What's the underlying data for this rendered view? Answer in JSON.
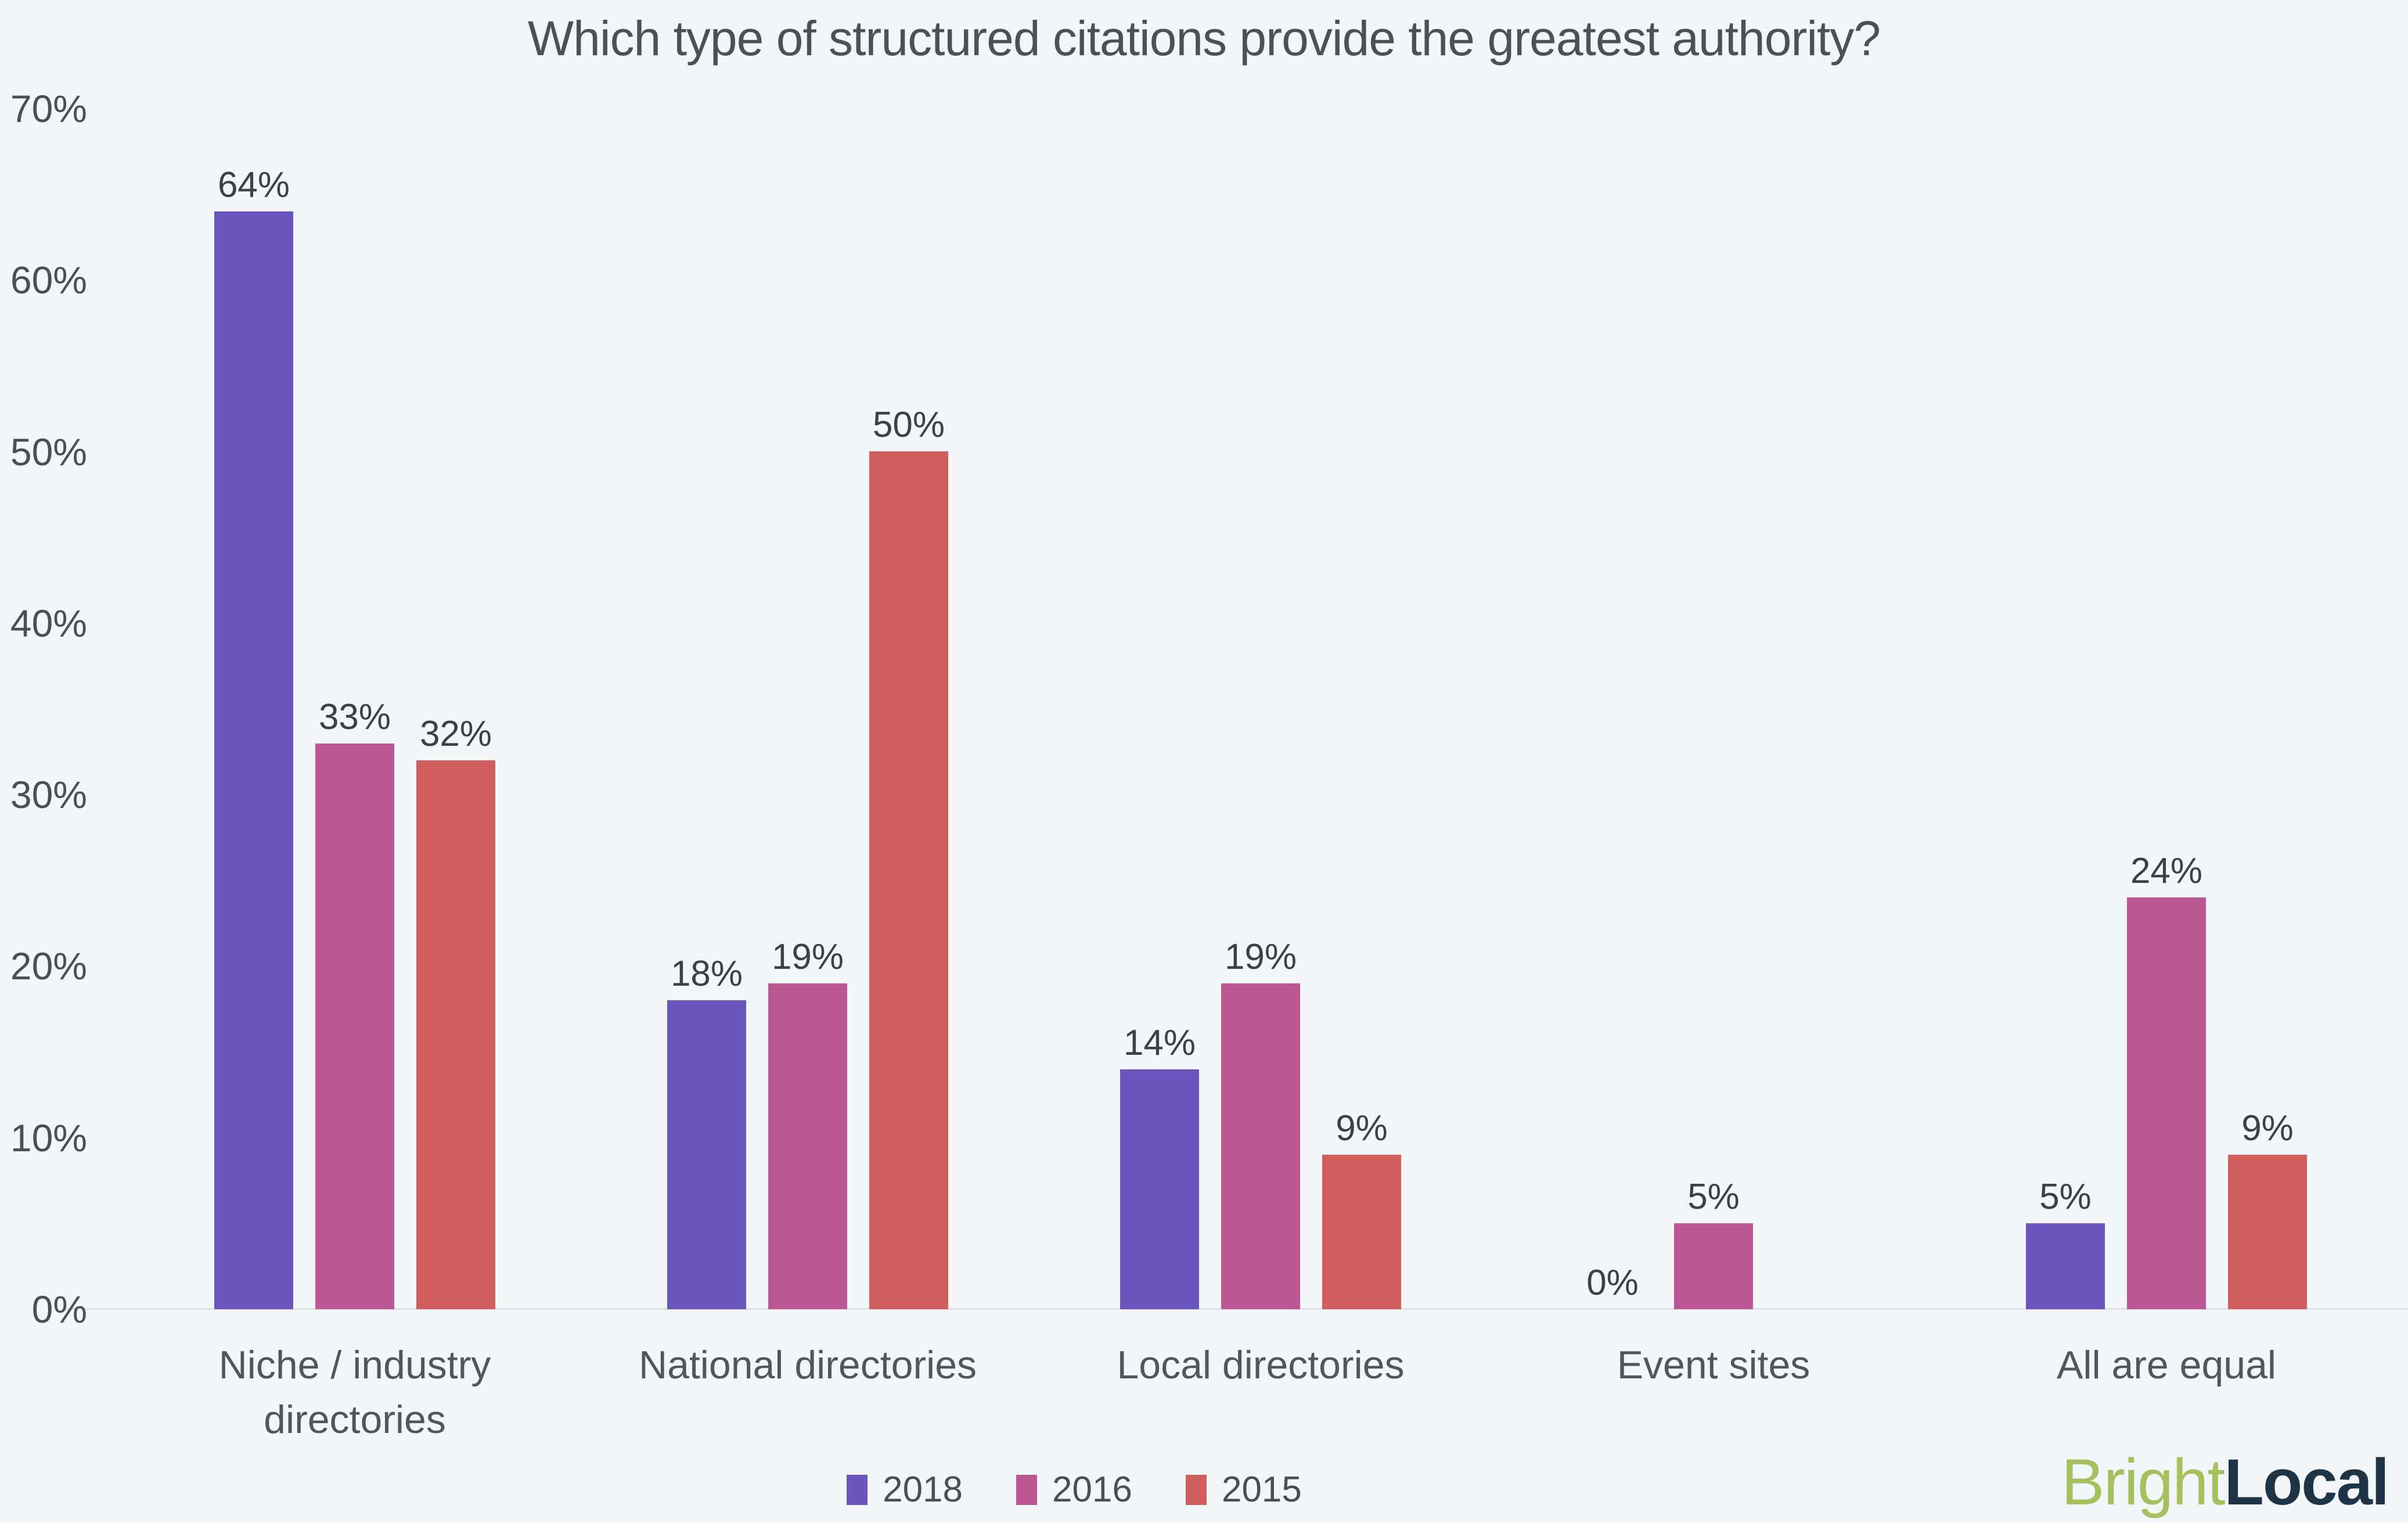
{
  "title": "Which type of structured citations provide the greatest authority?",
  "background_color": "#f2f6f9",
  "axis": {
    "ticks": [
      {
        "label": "70%",
        "value": 70
      },
      {
        "label": "60%",
        "value": 60
      },
      {
        "label": "50%",
        "value": 50
      },
      {
        "label": "40%",
        "value": 40
      },
      {
        "label": "30%",
        "value": 30
      },
      {
        "label": "20%",
        "value": 20
      },
      {
        "label": "10%",
        "value": 10
      },
      {
        "label": "0%",
        "value": 0
      }
    ],
    "line_color": "#dfe2e6"
  },
  "chart_data": {
    "type": "bar",
    "title": "Which type of structured citations provide the greatest authority?",
    "categories": [
      "Niche / industry directories",
      "National directories",
      "Local directories",
      "Event sites",
      "All are equal"
    ],
    "series": [
      {
        "name": "2018",
        "color": "#6955bb",
        "values": [
          64,
          18,
          14,
          0,
          5
        ]
      },
      {
        "name": "2016",
        "color": "#bd5793",
        "values": [
          33,
          19,
          19,
          5,
          24
        ]
      },
      {
        "name": "2015",
        "color": "#d15d5d",
        "values": [
          32,
          50,
          9,
          null,
          9
        ]
      }
    ],
    "value_suffix": "%",
    "xlabel": "",
    "ylabel": "",
    "ylim": [
      0,
      70
    ],
    "grid": false,
    "legend_position": "bottom-center",
    "notes": "null value = bar and label absent (2015 / Event sites); 0 value = label shown with no bar (2018 / Event sites)"
  },
  "legend": {
    "items": [
      {
        "label": "2018",
        "color": "#6955bb"
      },
      {
        "label": "2016",
        "color": "#bd5793"
      },
      {
        "label": "2015",
        "color": "#d15d5d"
      }
    ]
  },
  "branding": {
    "bright": "Bright",
    "local": "Local",
    "bright_color": "#a6c05e",
    "local_color": "#203448"
  }
}
